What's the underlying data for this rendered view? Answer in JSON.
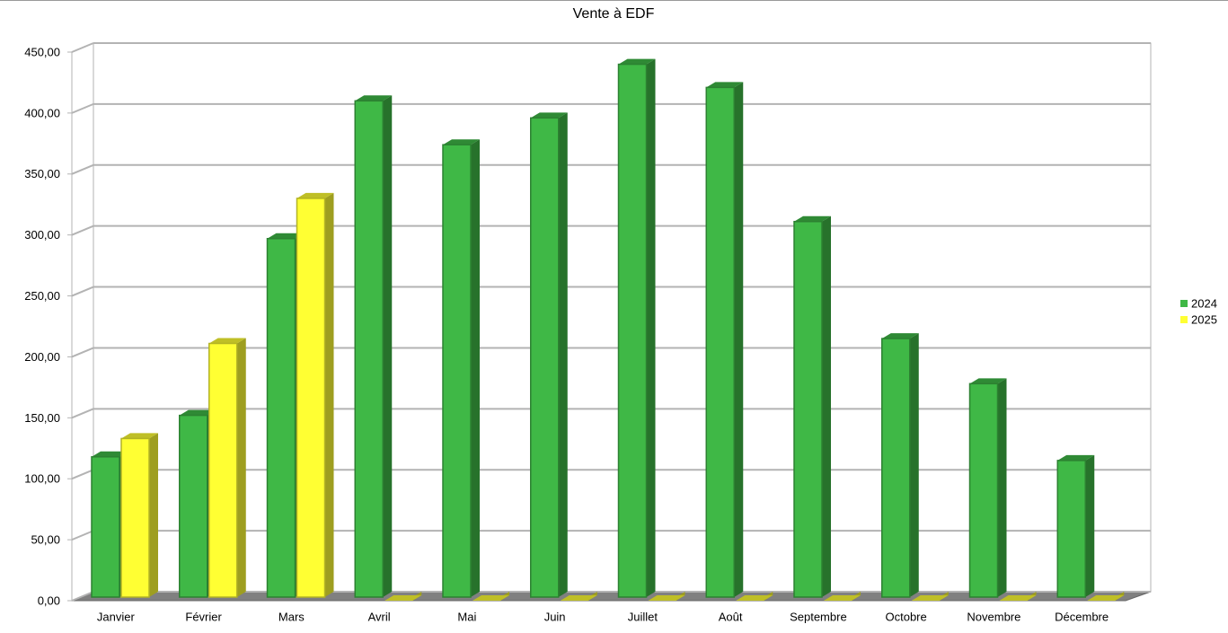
{
  "chart_data": {
    "type": "bar3d",
    "title": "Vente à EDF",
    "categories": [
      "Janvier",
      "Février",
      "Mars",
      "Avril",
      "Mai",
      "Juin",
      "Juillet",
      "Août",
      "Septembre",
      "Octobre",
      "Novembre",
      "Décembre"
    ],
    "series": [
      {
        "name": "2024",
        "color": "#3fb846",
        "values": [
          118,
          152,
          297,
          410,
          374,
          396,
          440,
          421,
          311,
          215,
          178,
          115
        ]
      },
      {
        "name": "2025",
        "color": "#ffff33",
        "values": [
          133,
          211,
          330,
          0,
          0,
          0,
          0,
          0,
          0,
          0,
          0,
          0
        ]
      }
    ],
    "ylim": [
      0,
      450
    ],
    "yticks": [
      {
        "value": 0,
        "label": "0,00"
      },
      {
        "value": 50,
        "label": "50,00"
      },
      {
        "value": 100,
        "label": "100,00"
      },
      {
        "value": 150,
        "label": "150,00"
      },
      {
        "value": 200,
        "label": "200,00"
      },
      {
        "value": 250,
        "label": "250,00"
      },
      {
        "value": 300,
        "label": "300,00"
      },
      {
        "value": 350,
        "label": "350,00"
      },
      {
        "value": 400,
        "label": "400,00"
      },
      {
        "value": 450,
        "label": "450,00"
      }
    ],
    "grid": true,
    "legend": "right"
  }
}
